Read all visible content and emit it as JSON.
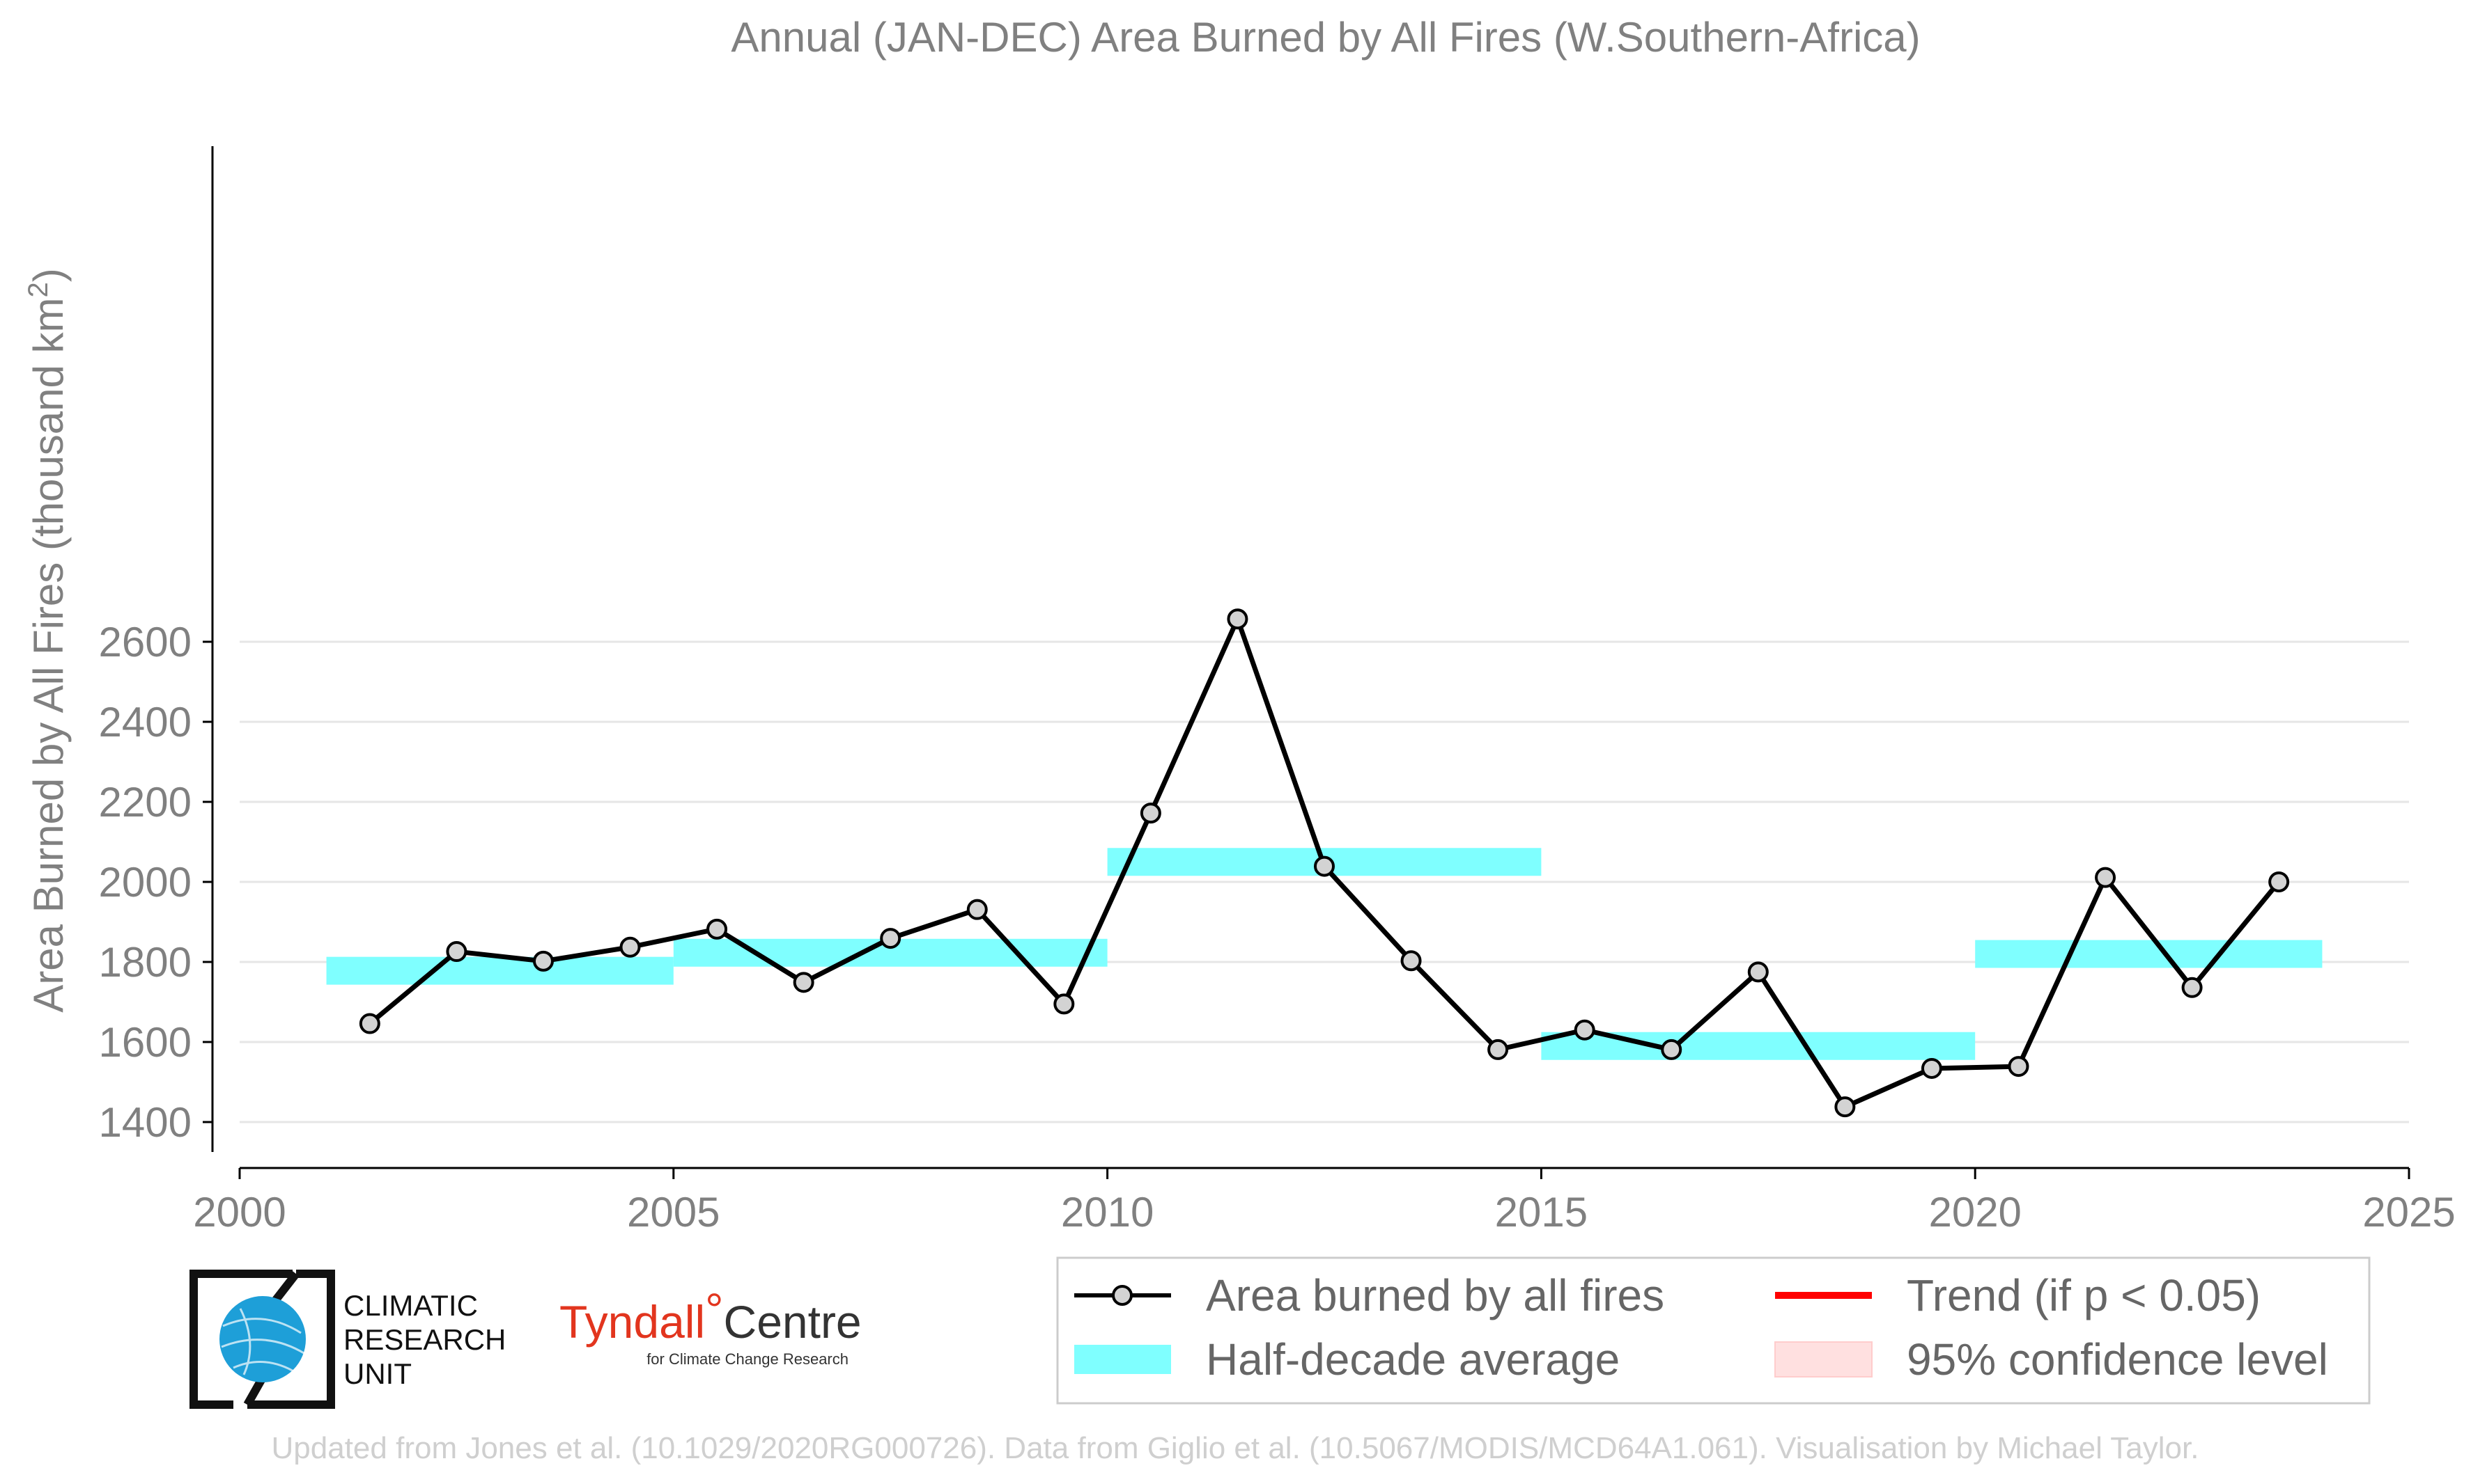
{
  "chart_data": {
    "type": "line",
    "title": "Annual (JAN-DEC) Area Burned by All Fires (W.Southern-Africa)",
    "ylabel": "Area Burned by All Fires (thousand km",
    "ylabel_sup": "2",
    "ylabel_close": ")",
    "xlim": [
      2000,
      2025
    ],
    "ylim": [
      1400,
      2650
    ],
    "x_ticks": [
      2000,
      2005,
      2010,
      2015,
      2020,
      2025
    ],
    "y_ticks": [
      1400,
      1600,
      1800,
      2000,
      2200,
      2400,
      2600
    ],
    "grid": true,
    "series": [
      {
        "name": "Area burned by all fires",
        "color": "#000000",
        "marker_fill": "#d3d3d3",
        "x": [
          2001.5,
          2002.5,
          2003.5,
          2004.5,
          2005.5,
          2006.5,
          2007.5,
          2008.5,
          2009.5,
          2010.5,
          2011.5,
          2012.5,
          2013.5,
          2014.5,
          2015.5,
          2016.5,
          2017.5,
          2018.5,
          2019.5,
          2020.5,
          2021.5,
          2022.5,
          2023.5
        ],
        "y": [
          1646,
          1826,
          1802,
          1837,
          1882,
          1749,
          1859,
          1931,
          1695,
          2172,
          2657,
          2039,
          1803,
          1581,
          1630,
          1581,
          1775,
          1438,
          1534,
          1539,
          2011,
          1736,
          2000
        ]
      }
    ],
    "half_decade_average": {
      "name": "Half-decade average",
      "color": "#7fffff",
      "segments": [
        {
          "x0": 2001,
          "x1": 2005,
          "y": 1778
        },
        {
          "x0": 2005,
          "x1": 2010,
          "y": 1823
        },
        {
          "x0": 2010,
          "x1": 2015,
          "y": 2050
        },
        {
          "x0": 2015,
          "x1": 2020,
          "y": 1590
        },
        {
          "x0": 2020,
          "x1": 2024,
          "y": 1820
        }
      ]
    },
    "legend": {
      "placement": "bottom-right",
      "entries": [
        {
          "label": "Area burned by all fires",
          "kind": "line-marker",
          "color": "#000000"
        },
        {
          "label": "Trend (if p < 0.05)",
          "kind": "line",
          "color": "#ff0000"
        },
        {
          "label": "Half-decade average",
          "kind": "band",
          "color": "#7fffff"
        },
        {
          "label": "95% confidence level",
          "kind": "band",
          "color": "#ffe0e0"
        }
      ]
    }
  },
  "logos": {
    "cru_lines": [
      "CLIMATIC",
      "RESEARCH",
      "UNIT"
    ],
    "tyndall_name": "Tyndall",
    "tyndall_degree": "°",
    "tyndall_centre": "Centre",
    "tyndall_sub": "for Climate Change Research"
  },
  "footer": "Updated from Jones et al. (10.1029/2020RG000726). Data from Giglio et al. (10.5067/MODIS/MCD64A1.061). Visualisation by Michael Taylor."
}
